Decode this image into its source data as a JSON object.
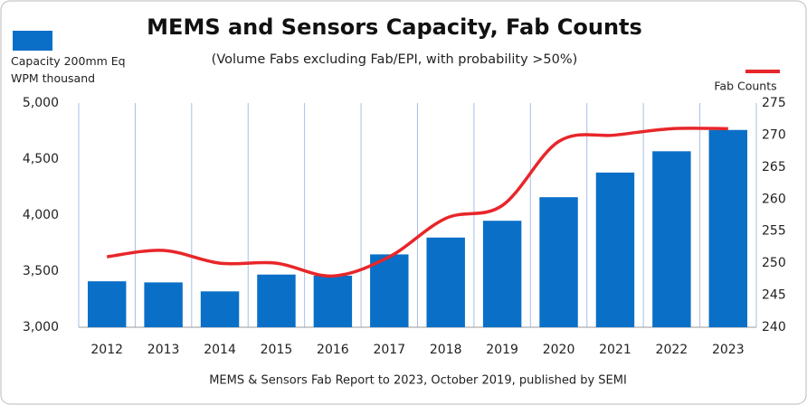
{
  "chart_data": {
    "type": "bar-line",
    "title": "MEMS and Sensors Capacity, Fab Counts",
    "subtitle": "(Volume Fabs excluding Fab/EPI, with probability >50%)",
    "source": "MEMS & Sensors Fab Report to 2023, October 2019, published by SEMI",
    "categories": [
      "2012",
      "2013",
      "2014",
      "2015",
      "2016",
      "2017",
      "2018",
      "2019",
      "2020",
      "2021",
      "2022",
      "2023"
    ],
    "series": [
      {
        "name": "Capacity 200mm Eq WPM thousand",
        "type": "bar",
        "color": "#0a6fc7",
        "values": [
          3410,
          3400,
          3320,
          3470,
          3460,
          3650,
          3800,
          3950,
          4160,
          4380,
          4570,
          4760
        ]
      },
      {
        "name": "Fab Counts",
        "type": "line",
        "axis": "y2",
        "color": "#e8262a",
        "values": [
          251,
          252,
          250,
          250,
          248,
          251,
          257,
          259,
          269,
          270,
          271,
          271
        ]
      }
    ],
    "ylim": [
      3000,
      5000
    ],
    "yticks": [
      {
        "value": 3000,
        "label": "3,000"
      },
      {
        "value": 3500,
        "label": "3,500"
      },
      {
        "value": 4000,
        "label": "4,000"
      },
      {
        "value": 4500,
        "label": "4,500"
      },
      {
        "value": 5000,
        "label": "5,000"
      }
    ],
    "y2lim": [
      240,
      275
    ],
    "y2ticks": [
      240,
      245,
      250,
      255,
      260,
      265,
      270,
      275
    ],
    "grid": true
  }
}
